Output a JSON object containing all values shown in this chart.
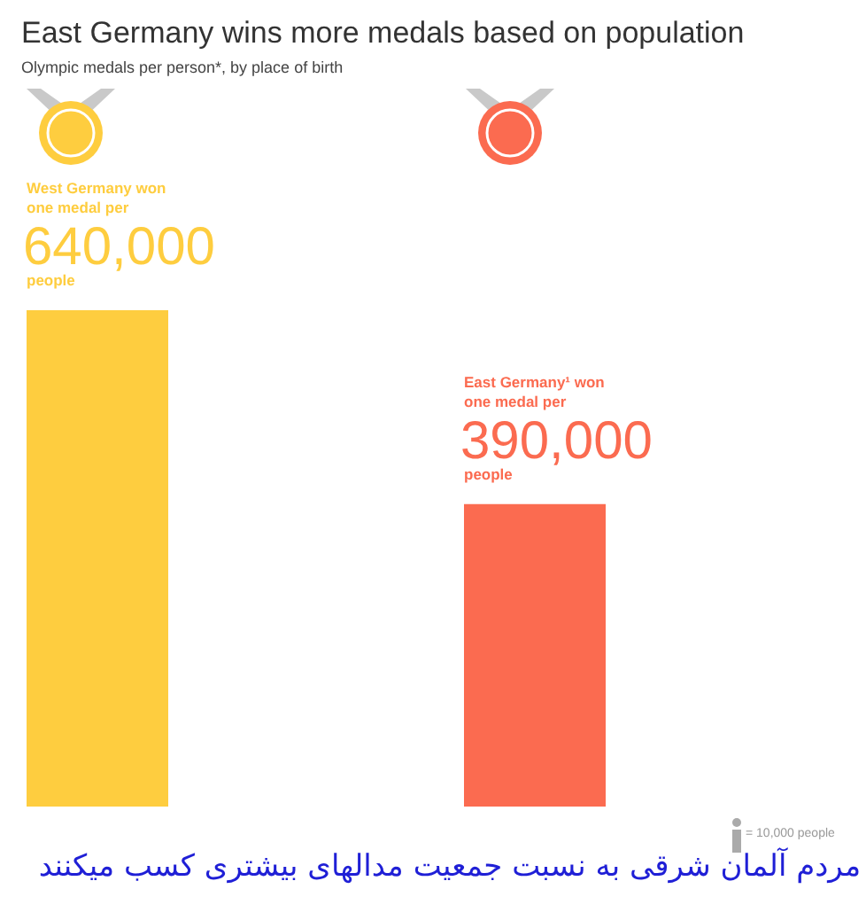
{
  "chart_data": {
    "type": "bar",
    "title": "East Germany wins more medals based on population",
    "subtitle": "Olympic medals per person*, by place of birth",
    "categories": [
      null,
      null
    ],
    "values": [
      640000,
      390000
    ],
    "colors": [
      "#fecd3f",
      "#fb6b50"
    ],
    "value_labels": [
      "640,000",
      "390,000"
    ],
    "annotations": [
      "West Germany won",
      "one medal per",
      "people",
      "East Germany¹ won",
      "one medal per",
      "people",
      "= 10,000 people",
      "مردم آلمان شرقی به نسبت جمعیت مدالهای بیشتری کسب میکنند"
    ]
  }
}
